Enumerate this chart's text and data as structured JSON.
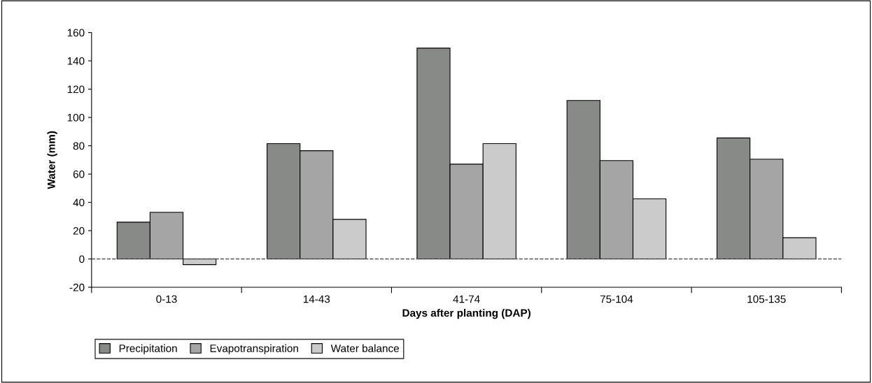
{
  "chart_data": {
    "type": "bar",
    "xlabel": "Days after planting (DAP)",
    "ylabel": "Water (mm)",
    "categories": [
      "0-13",
      "14-43",
      "41-74",
      "75-104",
      "105-135"
    ],
    "series": [
      {
        "name": "Precipitation",
        "color": "#888a88",
        "values": [
          26,
          81.5,
          149,
          112,
          85.5
        ]
      },
      {
        "name": "Evapotranspiration",
        "color": "#a5a5a5",
        "values": [
          33,
          76.5,
          67,
          69.5,
          70.5
        ]
      },
      {
        "name": "Water balance",
        "color": "#cbcbcb",
        "values": [
          -4,
          28,
          81.5,
          42.5,
          15
        ]
      }
    ],
    "ylim": [
      -20,
      160
    ],
    "yticks": [
      -20,
      0,
      20,
      40,
      60,
      80,
      100,
      120,
      140,
      160
    ],
    "ref_lines": [
      {
        "axis": "y",
        "value": 0,
        "color": "#555555",
        "line_style": "dashed"
      }
    ],
    "grid": false,
    "legend": "bottom left"
  }
}
